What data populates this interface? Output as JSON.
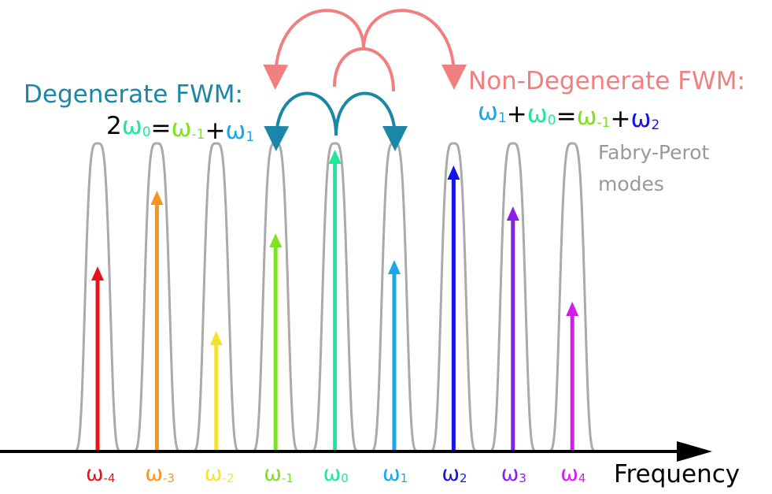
{
  "degenerate": {
    "title": "Degenerate FWM:",
    "title_color": "#1a87a8",
    "equation": [
      {
        "text": "2",
        "color": "#000000"
      },
      {
        "text": "ω",
        "sub": "0",
        "color": "#1ee89a"
      },
      {
        "text": "=",
        "color": "#000000"
      },
      {
        "text": "ω",
        "sub": "-1",
        "color": "#7ee31f"
      },
      {
        "text": "+",
        "color": "#000000"
      },
      {
        "text": "ω",
        "sub": "1",
        "color": "#1ca6e8"
      }
    ]
  },
  "non_degenerate": {
    "title": "Non-Degenerate FWM:",
    "title_color": "#f08080",
    "equation": [
      {
        "text": "ω",
        "sub": "1",
        "color": "#1ca6e8"
      },
      {
        "text": "+",
        "color": "#000000"
      },
      {
        "text": "ω",
        "sub": "0",
        "color": "#1ee89a"
      },
      {
        "text": "=",
        "color": "#000000"
      },
      {
        "text": "ω",
        "sub": "-1",
        "color": "#7ee31f"
      },
      {
        "text": "+",
        "color": "#000000"
      },
      {
        "text": "ω",
        "sub": "2",
        "color": "#1414e8"
      }
    ]
  },
  "fabry_perot": {
    "lines": [
      "Fabry-Perot",
      "modes"
    ],
    "color": "#999999"
  },
  "axis_label": "Frequency",
  "modes": [
    {
      "text": "ω",
      "sub": "-4",
      "color": "#e8141c"
    },
    {
      "text": "ω",
      "sub": "-3",
      "color": "#f7941d"
    },
    {
      "text": "ω",
      "sub": "-2",
      "color": "#f5e230"
    },
    {
      "text": "ω",
      "sub": "-1",
      "color": "#7ee31f"
    },
    {
      "text": "ω",
      "sub": "0",
      "color": "#1ee89a"
    },
    {
      "text": "ω",
      "sub": "1",
      "color": "#1ca6e8"
    },
    {
      "text": "ω",
      "sub": "2",
      "color": "#1414e8"
    },
    {
      "text": "ω",
      "sub": "3",
      "color": "#8b1ee8"
    },
    {
      "text": "ω",
      "sub": "4",
      "color": "#d21ee8"
    }
  ]
}
